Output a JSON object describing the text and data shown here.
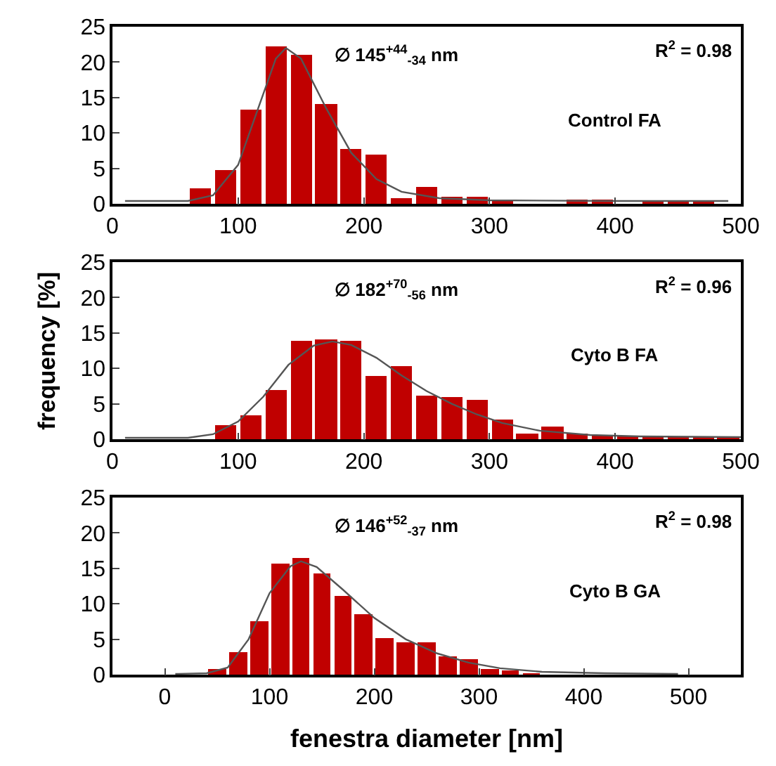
{
  "chart_data": [
    {
      "type": "histogram",
      "color": "#c00000",
      "bins": [
        60,
        80,
        100,
        120,
        140,
        160,
        180,
        200,
        220,
        240,
        260,
        280,
        300,
        320,
        340,
        360,
        380,
        400,
        420,
        440,
        460,
        480
      ],
      "values": [
        2.2,
        4.8,
        13.3,
        22.2,
        21,
        14,
        7.7,
        7,
        0.7,
        2.3,
        1,
        1,
        0.3,
        0,
        0,
        0.6,
        0.6,
        0,
        0.3,
        0.3,
        0.3
      ],
      "series": [
        {
          "type": "line",
          "color": "#555555",
          "x": [
            10,
            60,
            80,
            100,
            115,
            130,
            138,
            150,
            170,
            190,
            210,
            230,
            260,
            300,
            400,
            490
          ],
          "values": [
            0.4,
            0.4,
            1.2,
            5.5,
            13,
            20.5,
            22,
            20.5,
            13.5,
            7.2,
            3.5,
            1.7,
            0.8,
            0.5,
            0.4,
            0.4
          ]
        }
      ],
      "xlim": [
        0,
        500
      ],
      "xticks": [
        0,
        100,
        200,
        300,
        400,
        500
      ],
      "ylim": [
        0,
        25
      ],
      "yticks": [
        0,
        5,
        10,
        15,
        20,
        25
      ],
      "annotations": [
        "∅ 145$^{+44}$$_{-34}$ nm",
        "R$^{2}$ = 0.98",
        "Control FA"
      ]
    },
    {
      "type": "histogram",
      "color": "#c00000",
      "bins": [
        80,
        100,
        120,
        140,
        160,
        180,
        200,
        220,
        240,
        260,
        280,
        300,
        320,
        340,
        360,
        380,
        400,
        420,
        440,
        460,
        480,
        500
      ],
      "values": [
        2,
        3.4,
        7,
        13.8,
        14,
        13.8,
        9,
        10.3,
        6.2,
        5.9,
        5.6,
        2.7,
        0.7,
        1.7,
        0.7,
        0.5,
        0.3,
        0.3,
        0.3,
        0.3,
        0.3
      ],
      "series": [
        {
          "type": "line",
          "color": "#555555",
          "x": [
            10,
            60,
            80,
            100,
            120,
            140,
            160,
            175,
            190,
            210,
            230,
            250,
            270,
            290,
            310,
            340,
            380,
            420,
            500
          ],
          "values": [
            0.2,
            0.2,
            0.7,
            2.5,
            6,
            10.5,
            13.2,
            13.8,
            13.3,
            11.5,
            9,
            6.8,
            5,
            3.5,
            2.3,
            1.2,
            0.6,
            0.4,
            0.3
          ]
        }
      ],
      "xlim": [
        0,
        500
      ],
      "xticks": [
        0,
        100,
        200,
        300,
        400,
        500
      ],
      "ylim": [
        0,
        25
      ],
      "yticks": [
        0,
        5,
        10,
        15,
        20,
        25
      ],
      "ylabel": "frequency [%]",
      "annotations": [
        "∅ 182$^{+70}$$_{-56}$ nm",
        "R$^{2}$ = 0.96",
        "Cyto B FA"
      ]
    },
    {
      "type": "histogram",
      "color": "#c00000",
      "bins": [
        40,
        60,
        80,
        100,
        120,
        140,
        160,
        180,
        200,
        220,
        240,
        260,
        280,
        300,
        320,
        340,
        360
      ],
      "values": [
        0.8,
        3.2,
        7.6,
        15.7,
        16.4,
        14.3,
        11.2,
        8.5,
        5.2,
        4.5,
        4.5,
        2.5,
        2.2,
        0.8,
        0.5,
        0.2
      ],
      "series": [
        {
          "type": "line",
          "color": "#555555",
          "x": [
            10,
            40,
            60,
            80,
            100,
            120,
            130,
            145,
            170,
            200,
            230,
            260,
            290,
            320,
            360,
            420,
            490
          ],
          "values": [
            0.1,
            0.2,
            1,
            5,
            11.5,
            15.3,
            16,
            15.2,
            12,
            8,
            5,
            3,
            1.7,
            0.9,
            0.4,
            0.2,
            0.1
          ]
        }
      ],
      "xlim": [
        -50,
        550
      ],
      "xticks": [
        0,
        100,
        200,
        300,
        400,
        500
      ],
      "ylim": [
        0,
        25
      ],
      "yticks": [
        0,
        5,
        10,
        15,
        20,
        25
      ],
      "xlabel": "fenestra diameter [nm]",
      "annotations": [
        "∅ 146$^{+52}$$_{-37}$ nm",
        "R$^{2}$ = 0.98",
        "Cyto B GA"
      ]
    }
  ]
}
